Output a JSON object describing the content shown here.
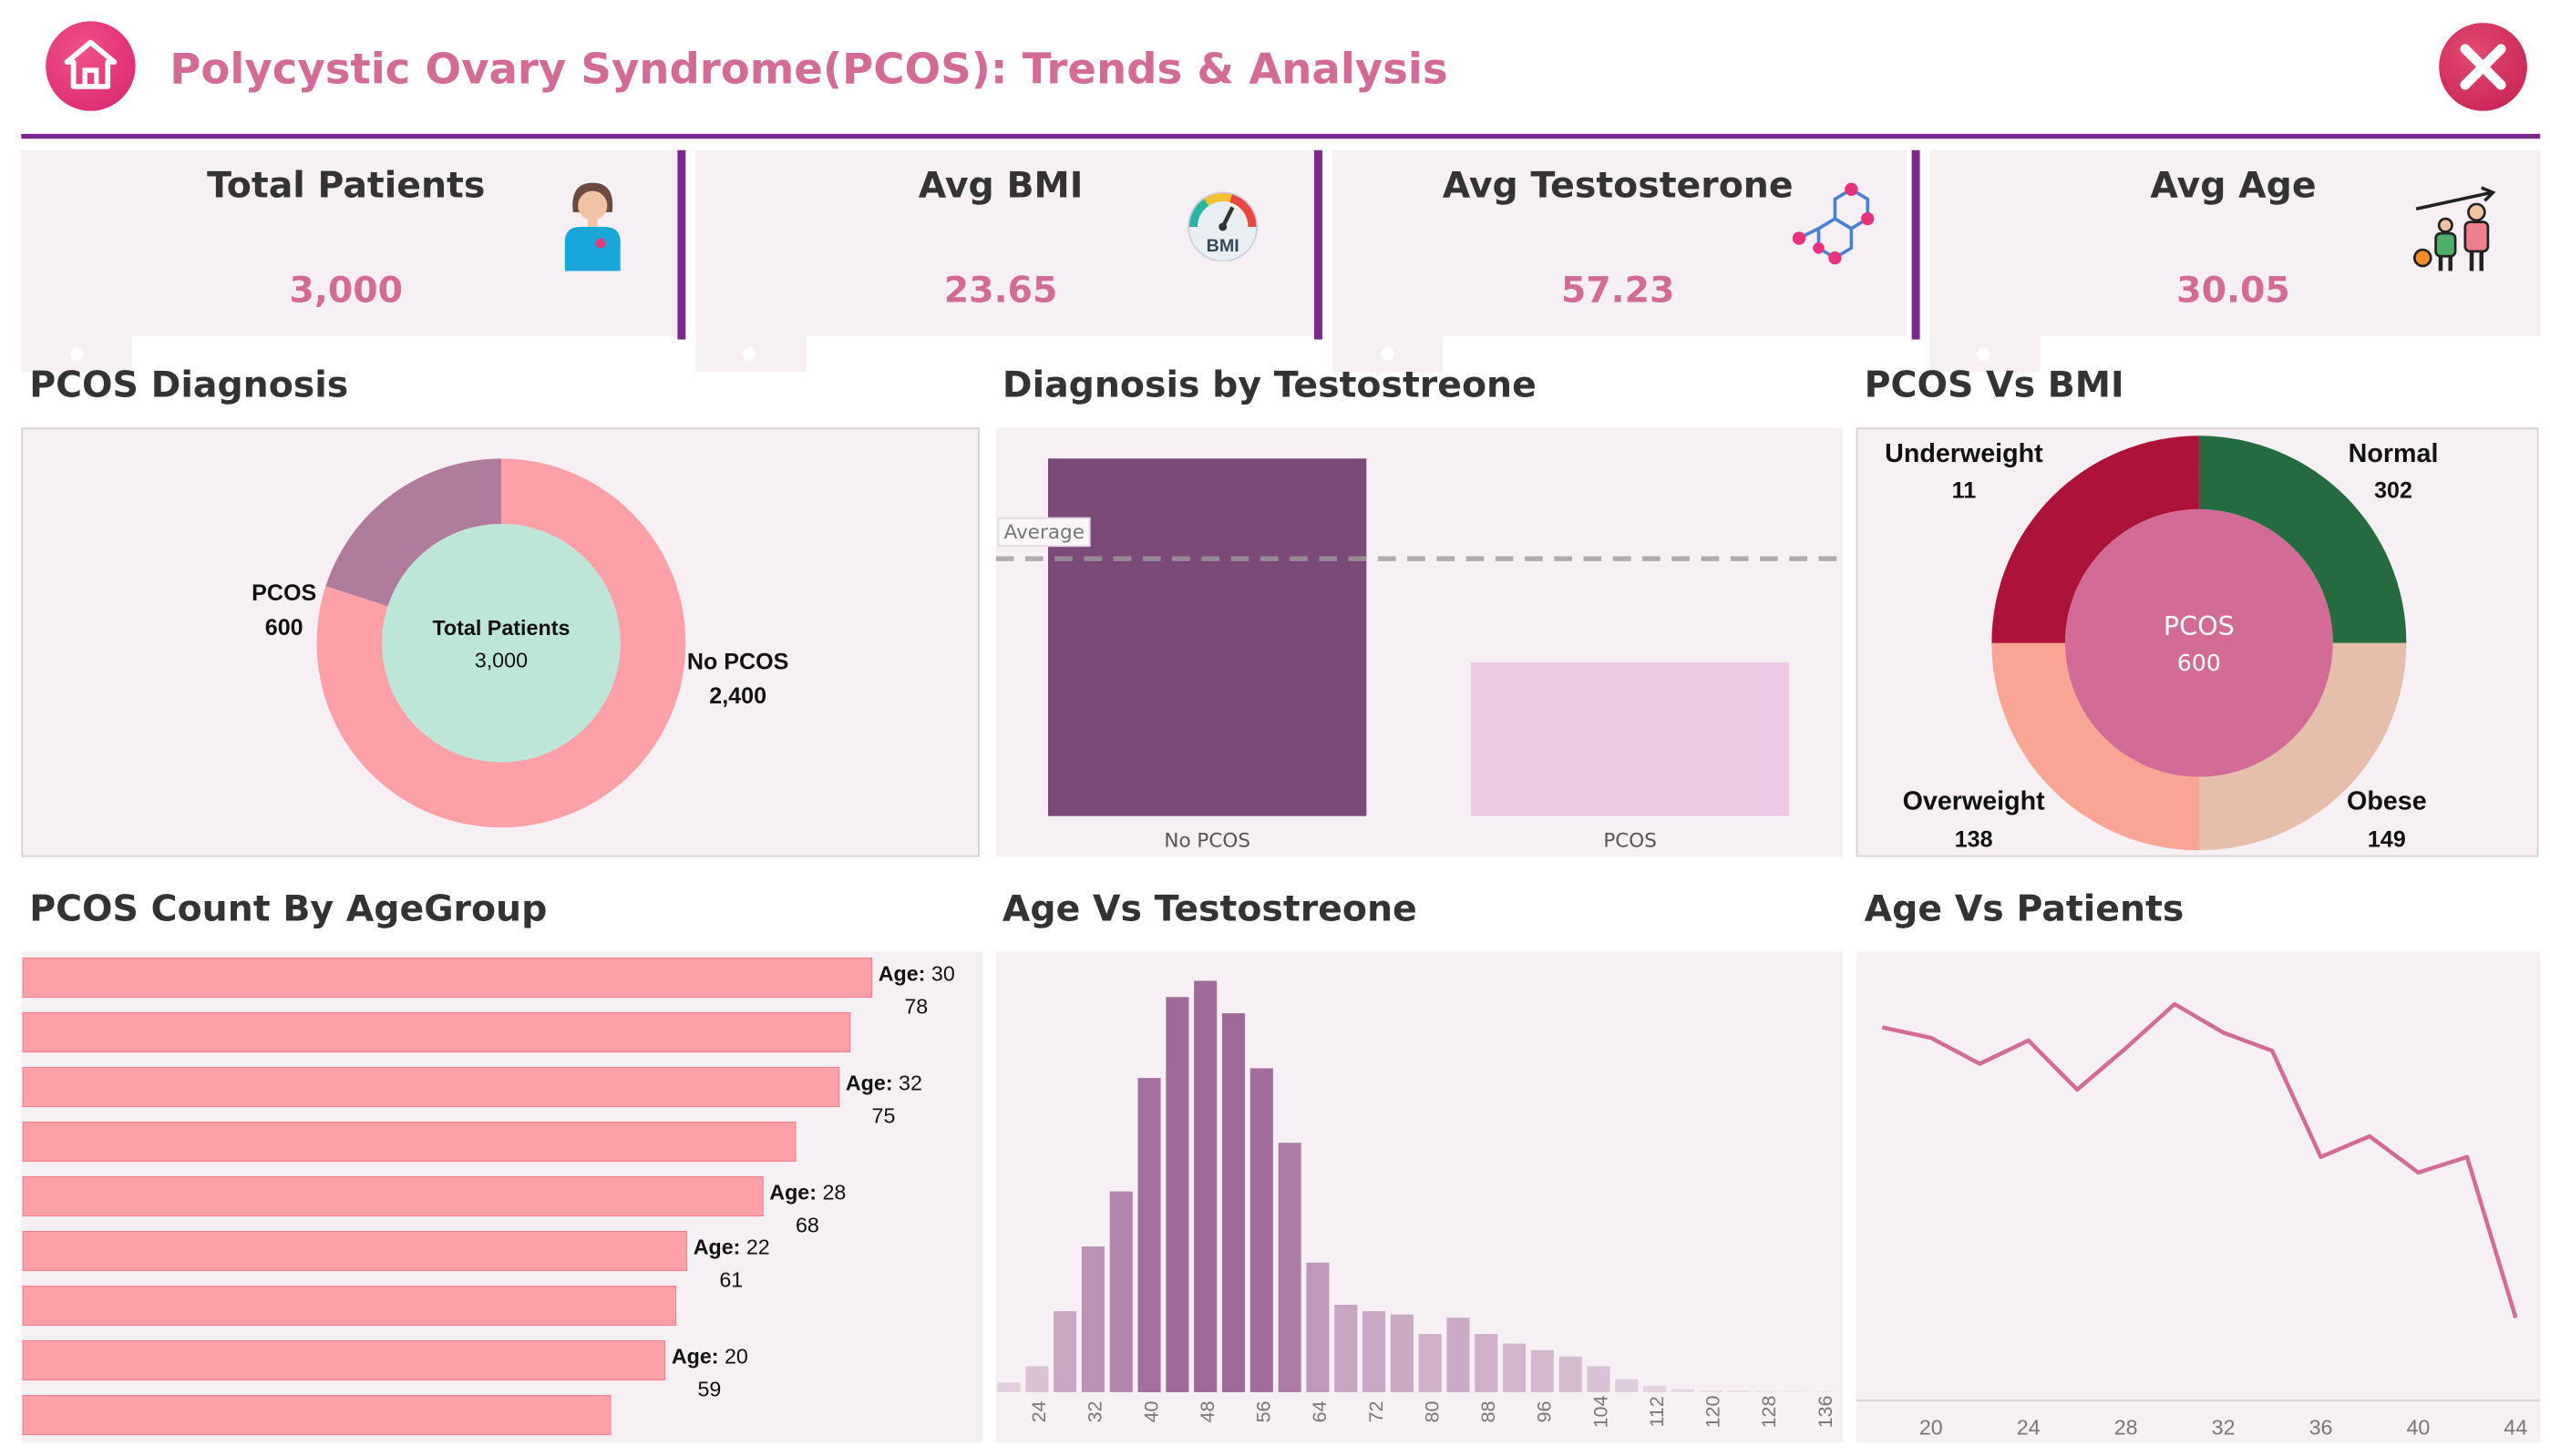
{
  "header": {
    "title": "Polycystic Ovary Syndrome(PCOS): Trends & Analysis",
    "home_icon": "home-icon",
    "close_icon": "close-icon",
    "accent_color": "#d36b97",
    "rule_color": "#7a2a8a"
  },
  "kpis": [
    {
      "label": "Total Patients",
      "value": "3,000",
      "icon": "patient-icon"
    },
    {
      "label": "Avg BMI",
      "value": "23.65",
      "icon": "bmi-gauge-icon"
    },
    {
      "label": "Avg Testosterone",
      "value": "57.23",
      "icon": "molecule-icon"
    },
    {
      "label": "Avg Age",
      "value": "30.05",
      "icon": "age-growth-icon"
    }
  ],
  "sections": {
    "diagnosis": "PCOS Diagnosis",
    "testosterone": "Diagnosis by Testostreone",
    "bmi": "PCOS Vs BMI",
    "agegroup": "PCOS Count By AgeGroup",
    "age_testosterone": "Age Vs Testostreone",
    "age_patients": "Age Vs Patients"
  },
  "donut": {
    "center_title": "Total Patients",
    "center_value": "3,000",
    "pcos_label": "PCOS",
    "pcos_value": "600",
    "no_pcos_label": "No PCOS",
    "no_pcos_value": "2,400"
  },
  "bmi_donut": {
    "center_title": "PCOS",
    "center_value": "600",
    "underweight_label": "Underweight",
    "underweight_value": "11",
    "normal_label": "Normal",
    "normal_value": "302",
    "overweight_label": "Overweight",
    "overweight_value": "138",
    "obese_label": "Obese",
    "obese_value": "149"
  },
  "testosterone_bars": {
    "average_label": "Average",
    "cat1": "No PCOS",
    "cat2": "PCOS"
  },
  "chart_data": [
    {
      "type": "pie",
      "title": "PCOS Diagnosis",
      "categories": [
        "PCOS",
        "No PCOS"
      ],
      "values": [
        600,
        2400
      ],
      "colors": [
        "#b07c9e",
        "#fea0a8"
      ],
      "center_color": "#bde5d8"
    },
    {
      "type": "bar",
      "title": "Diagnosis by Testostreone",
      "categories": [
        "No PCOS",
        "PCOS"
      ],
      "values": [
        100,
        43
      ],
      "average": 72,
      "ylim": [
        0,
        105
      ],
      "colors": [
        "#7b4a76",
        "#ecc9e4"
      ]
    },
    {
      "type": "pie",
      "title": "PCOS Vs BMI",
      "categories": [
        "Underweight",
        "Normal",
        "Overweight",
        "Obese"
      ],
      "values": [
        11,
        302,
        138,
        149
      ],
      "colors": [
        "#ad1238",
        "#246b40",
        "#f9a593",
        "#e6bfac"
      ],
      "center_color": "#d26c96"
    },
    {
      "type": "bar",
      "orientation": "horizontal",
      "title": "PCOS Count By AgeGroup",
      "categories": [
        "30",
        "",
        "32",
        "",
        "28",
        "22",
        "",
        "20",
        ""
      ],
      "labels": [
        "Age: 30",
        "",
        "Age: 32",
        "",
        "Age: 28",
        "Age: 22",
        "",
        "Age: 20",
        ""
      ],
      "values": [
        78,
        76,
        75,
        71,
        68,
        61,
        60,
        59,
        54
      ],
      "xlim": [
        0,
        78
      ],
      "color": "#fea0a8"
    },
    {
      "type": "bar",
      "title": "Age Vs Testostreone",
      "x": [
        20,
        24,
        28,
        32,
        36,
        40,
        44,
        48,
        52,
        56,
        60,
        64,
        68,
        72,
        76,
        80,
        84,
        88,
        92,
        96,
        100,
        104,
        108,
        112,
        116,
        120,
        124,
        128,
        132,
        136
      ],
      "values": [
        3,
        8,
        25,
        45,
        62,
        97,
        122,
        127,
        117,
        100,
        77,
        40,
        27,
        25,
        24,
        18,
        23,
        18,
        15,
        13,
        11,
        8,
        4,
        2,
        1,
        0.5,
        0.5,
        0.3,
        0.2,
        0.2
      ],
      "ylim": [
        0,
        130
      ],
      "xtick_labels": [
        "24",
        "32",
        "40",
        "48",
        "56",
        "64",
        "72",
        "80",
        "88",
        "96",
        "104",
        "112",
        "120",
        "128",
        "136"
      ],
      "color_scale": [
        "#eee4ec",
        "#a06a98"
      ]
    },
    {
      "type": "line",
      "title": "Age Vs Patients",
      "x": [
        18,
        20,
        22,
        24,
        26,
        28,
        30,
        32,
        34,
        36,
        38,
        40,
        42,
        44
      ],
      "values": [
        122,
        118,
        108,
        117,
        98,
        114,
        131,
        120,
        113,
        72,
        80,
        66,
        72,
        10
      ],
      "xlim": [
        18,
        44
      ],
      "ylim": [
        -20,
        145
      ],
      "xtick_labels": [
        "20",
        "24",
        "28",
        "32",
        "36",
        "40",
        "44"
      ],
      "color": "#d36b97"
    }
  ]
}
